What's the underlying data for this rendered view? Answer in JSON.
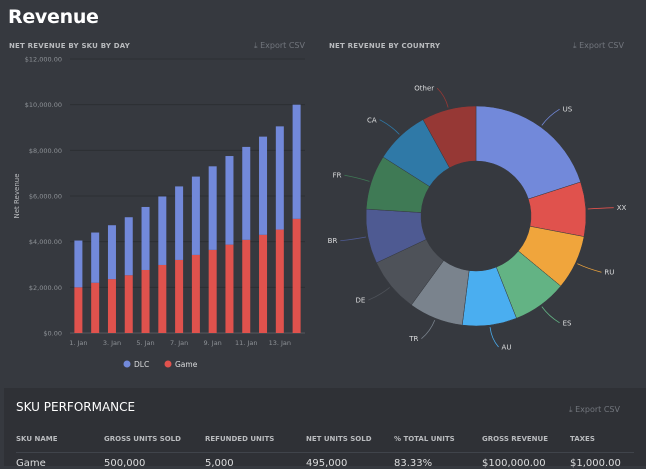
{
  "page": {
    "title": "Revenue"
  },
  "bar_section": {
    "title": "NET REVENUE BY SKU BY DAY",
    "export": "Export CSV"
  },
  "pie_section": {
    "title": "NET REVENUE BY COUNTRY",
    "export": "Export CSV"
  },
  "chart_data": [
    {
      "type": "bar",
      "stacked": true,
      "ylabel": "Net Revenue",
      "ylim": [
        0,
        12000
      ],
      "yticks": [
        "$0.00",
        "$2,000.00",
        "$4,000.00",
        "$6,000.00",
        "$8,000.00",
        "$10,000.00",
        "$12,000.00"
      ],
      "categories": [
        "1. Jan",
        "2. Jan",
        "3. Jan",
        "4. Jan",
        "5. Jan",
        "6. Jan",
        "7. Jan",
        "8. Jan",
        "9. Jan",
        "10. Jan",
        "11. Jan",
        "12. Jan",
        "13. Jan",
        "14. Jan"
      ],
      "xtick_labels": [
        "1. Jan",
        "3. Jan",
        "5. Jan",
        "7. Jan",
        "9. Jan",
        "11. Jan",
        "13. Jan"
      ],
      "series": [
        {
          "name": "Game",
          "color": "#e0524d",
          "values": [
            2000,
            2200,
            2360,
            2530,
            2760,
            2980,
            3200,
            3420,
            3640,
            3870,
            4080,
            4300,
            4530,
            5000
          ]
        },
        {
          "name": "DLC",
          "color": "#7289da",
          "values": [
            2050,
            2200,
            2360,
            2540,
            2760,
            3000,
            3220,
            3430,
            3660,
            3880,
            4070,
            4300,
            4520,
            5000
          ]
        }
      ],
      "legend": "bottom",
      "grid": true
    },
    {
      "type": "pie",
      "donut": true,
      "slices": [
        {
          "label": "US",
          "value": 20,
          "color": "#7289da"
        },
        {
          "label": "XX",
          "value": 8,
          "color": "#e0524d"
        },
        {
          "label": "RU",
          "value": 8,
          "color": "#f0a53c"
        },
        {
          "label": "ES",
          "value": 8,
          "color": "#63b384"
        },
        {
          "label": "AU",
          "value": 8,
          "color": "#4aaef0"
        },
        {
          "label": "TR",
          "value": 8,
          "color": "#7a838d"
        },
        {
          "label": "DE",
          "value": 8,
          "color": "#4e5259"
        },
        {
          "label": "BR",
          "value": 8,
          "color": "#4e5a92"
        },
        {
          "label": "FR",
          "value": 8,
          "color": "#3f7a55"
        },
        {
          "label": "CA",
          "value": 8,
          "color": "#2f79a7"
        },
        {
          "label": "Other",
          "value": 8,
          "color": "#963835"
        }
      ]
    }
  ],
  "sku": {
    "title": "SKU PERFORMANCE",
    "export": "Export CSV",
    "headers": [
      "SKU NAME",
      "GROSS UNITS SOLD",
      "REFUNDED UNITS",
      "NET UNITS SOLD",
      "% TOTAL UNITS",
      "GROSS REVENUE",
      "TAXES"
    ],
    "rows": [
      [
        "Game",
        "500,000",
        "5,000",
        "495,000",
        "83.33%",
        "$100,000.00",
        "$1,000.00"
      ]
    ]
  }
}
